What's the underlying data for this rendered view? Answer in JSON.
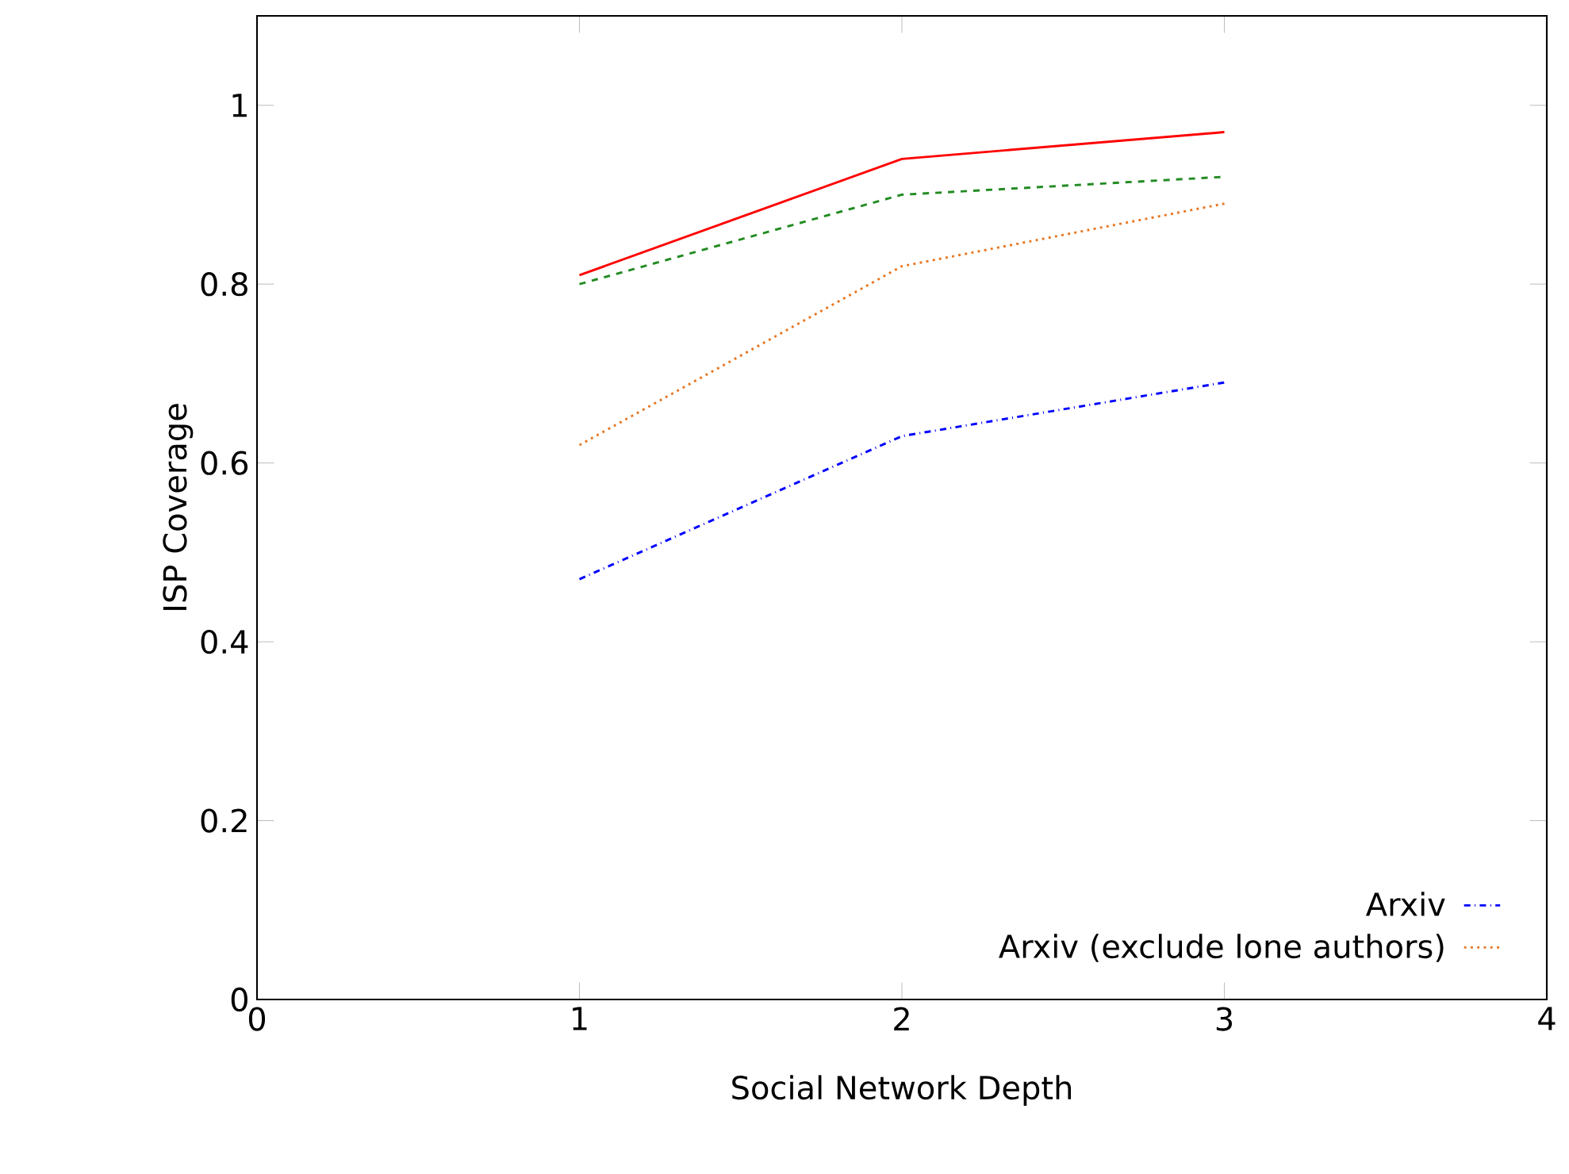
{
  "chart_data": {
    "type": "line",
    "xlabel": "Social Network Depth",
    "ylabel": "ISP Coverage",
    "x": [
      1,
      2,
      3
    ],
    "series": [
      {
        "name": "Arxiv",
        "color": "#0000ff",
        "line_style": "dashdot",
        "values": [
          0.47,
          0.63,
          0.69
        ]
      },
      {
        "color": "#228b22",
        "line_style": "dashed",
        "values": [
          0.8,
          0.9,
          0.92
        ]
      },
      {
        "color": "#ff0000",
        "line_style": "solid",
        "values": [
          0.81,
          0.94,
          0.97
        ]
      },
      {
        "name": "Arxiv (exclude lone authors)",
        "color": "#e87722",
        "line_style": "dotted",
        "values": [
          0.62,
          0.82,
          0.89
        ]
      }
    ],
    "xlim": [
      0,
      4
    ],
    "xticks": [
      0,
      1,
      2,
      3,
      4
    ],
    "ylim": [
      0,
      1.1
    ],
    "yticks": [
      0,
      0.2,
      0.4,
      0.6,
      0.8,
      1
    ],
    "legend": "bottom right",
    "grid": false,
    "marker": "none"
  }
}
